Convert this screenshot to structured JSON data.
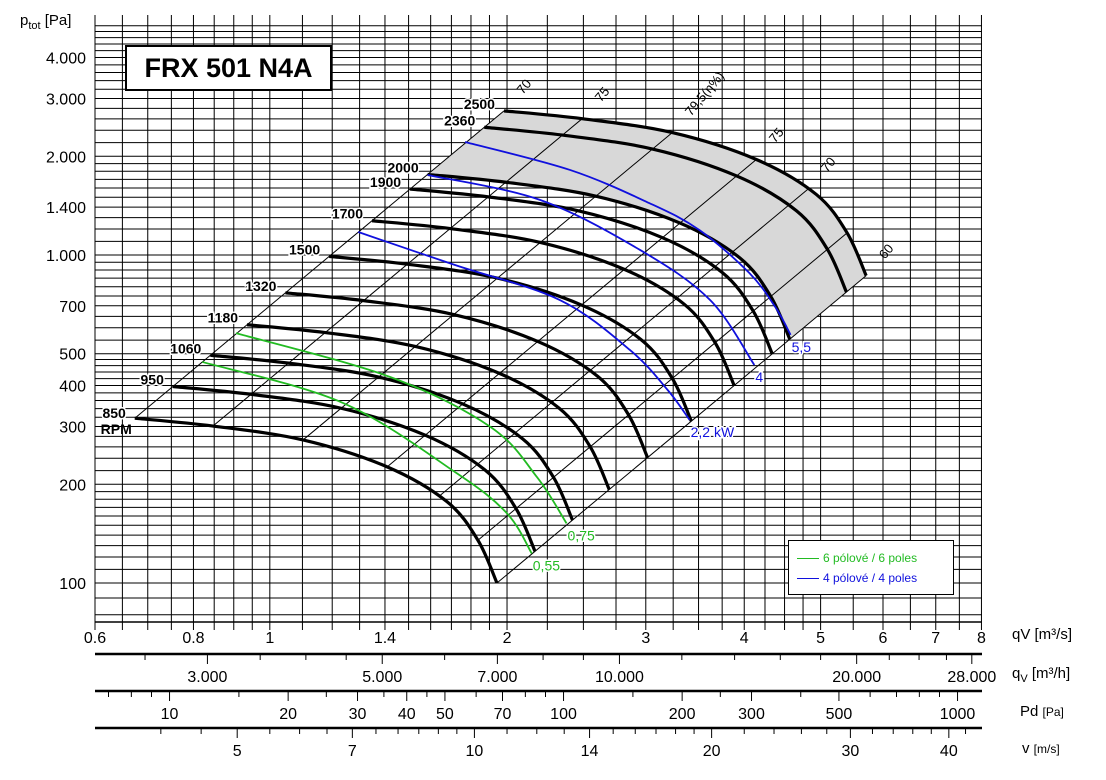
{
  "title": "FRX 501 N4A",
  "y_axis": {
    "symbol": "p",
    "sub": "tot",
    "unit": "[Pa]"
  },
  "units": {
    "qs": {
      "sym": "q",
      "sub": "V",
      "unit": "[m³/s]"
    },
    "qh": {
      "sym": "q",
      "sub": "V",
      "unit": "[m³/h]"
    },
    "pd": {
      "sym": "Pd",
      "unit": "[Pa]"
    },
    "v": {
      "sym": "v",
      "unit": "[m/s]"
    }
  },
  "legend": [
    {
      "label": "6 pólové / 6 poles",
      "color": "#22bb22"
    },
    {
      "label": "4 pólové / 4 poles",
      "color": "#1010dd"
    }
  ],
  "chart_data": {
    "type": "line",
    "title": "FRX 501 N4A",
    "xlabel": "qV [m³/s]",
    "ylabel": "ptot [Pa]",
    "xscale": "log",
    "yscale": "log",
    "xlim": [
      0.6,
      8
    ],
    "ylim": [
      76,
      5200
    ],
    "grid": true,
    "y_ticks": [
      {
        "v": 4000,
        "t": "4.000"
      },
      {
        "v": 3000,
        "t": "3.000"
      },
      {
        "v": 2000,
        "t": "2.000"
      },
      {
        "v": 1400,
        "t": "1.400"
      },
      {
        "v": 1000,
        "t": "1.000"
      },
      {
        "v": 700,
        "t": "700"
      },
      {
        "v": 500,
        "t": "500"
      },
      {
        "v": 400,
        "t": "400"
      },
      {
        "v": 300,
        "t": "300"
      },
      {
        "v": 200,
        "t": "200"
      },
      {
        "v": 100,
        "t": "100"
      }
    ],
    "x_ticks": [
      {
        "v": 0.6,
        "t": "0.6"
      },
      {
        "v": 0.8,
        "t": "0.8"
      },
      {
        "v": 1,
        "t": "1"
      },
      {
        "v": 1.4,
        "t": "1.4"
      },
      {
        "v": 2,
        "t": "2"
      },
      {
        "v": 3,
        "t": "3"
      },
      {
        "v": 4,
        "t": "4"
      },
      {
        "v": 5,
        "t": "5"
      },
      {
        "v": 6,
        "t": "6"
      },
      {
        "v": 7,
        "t": "7"
      },
      {
        "v": 8,
        "t": "8"
      }
    ],
    "base_rpm": 850,
    "base_curve": [
      [
        0.674,
        318
      ],
      [
        0.847,
        301
      ],
      [
        1.102,
        273
      ],
      [
        1.409,
        226
      ],
      [
        1.678,
        177
      ],
      [
        1.837,
        135
      ],
      [
        1.942,
        100
      ]
    ],
    "rpm_curves": [
      {
        "rpm": 850,
        "label": "850",
        "sub": "RPM"
      },
      {
        "rpm": 950,
        "label": "950"
      },
      {
        "rpm": 1060,
        "label": "1060"
      },
      {
        "rpm": 1180,
        "label": "1180"
      },
      {
        "rpm": 1320,
        "label": "1320"
      },
      {
        "rpm": 1500,
        "label": "1500"
      },
      {
        "rpm": 1700,
        "label": "1700"
      },
      {
        "rpm": 1900,
        "label": "1900"
      },
      {
        "rpm": 2000,
        "label": "2000"
      },
      {
        "rpm": 2360,
        "label": "2360"
      },
      {
        "rpm": 2500,
        "label": "2500"
      }
    ],
    "efficiency_lines": [
      {
        "q850": 0.674,
        "label": "70"
      },
      {
        "q850": 0.847,
        "label": "75"
      },
      {
        "q850": 1.102,
        "label": "79,5(η%)"
      },
      {
        "q850": 1.409,
        "label": "75"
      },
      {
        "q850": 1.64,
        "label": "70"
      },
      {
        "q850": 1.837,
        "label": ""
      },
      {
        "q850": 1.942,
        "label": "60"
      }
    ],
    "optimal_zone_rpm": [
      2000,
      2500
    ],
    "motor_curves": [
      {
        "label": "0,55",
        "poles": 6,
        "color": "#22bb22",
        "points": [
          [
            0.821,
            472
          ],
          [
            1.238,
            354
          ],
          [
            1.727,
            216
          ],
          [
            2.0,
            163
          ],
          [
            2.15,
            123
          ]
        ]
      },
      {
        "label": "0,75",
        "poles": 6,
        "color": "#22bb22",
        "points": [
          [
            0.906,
            578
          ],
          [
            1.42,
            425
          ],
          [
            1.906,
            299
          ],
          [
            2.184,
            210
          ],
          [
            2.38,
            152
          ]
        ]
      },
      {
        "label": "2,2 kW",
        "poles": 4,
        "color": "#1010dd",
        "points": [
          [
            1.295,
            1175
          ],
          [
            1.718,
            932
          ],
          [
            2.334,
            729
          ],
          [
            2.865,
            513
          ],
          [
            3.2,
            387
          ],
          [
            3.41,
            314
          ]
        ]
      },
      {
        "label": "4",
        "poles": 4,
        "color": "#1010dd",
        "points": [
          [
            1.586,
            1754
          ],
          [
            2.204,
            1471
          ],
          [
            2.95,
            1036
          ],
          [
            3.62,
            729
          ],
          [
            4.12,
            462
          ]
        ]
      },
      {
        "label": "5,5",
        "poles": 4,
        "color": "#1010dd",
        "points": [
          [
            1.769,
            2211
          ],
          [
            2.404,
            1817
          ],
          [
            3.03,
            1440
          ],
          [
            3.51,
            1191
          ],
          [
            4.06,
            881
          ],
          [
            4.38,
            694
          ],
          [
            4.58,
            571
          ]
        ]
      }
    ],
    "axis_m3h": {
      "labels": [
        {
          "v": 3000,
          "t": "3.000"
        },
        {
          "v": 5000,
          "t": "5.000"
        },
        {
          "v": 7000,
          "t": "7.000"
        },
        {
          "v": 10000,
          "t": "10.000"
        },
        {
          "v": 20000,
          "t": "20.000"
        },
        {
          "v": 28000,
          "t": "28.000"
        }
      ],
      "ticks": [
        2500,
        3000,
        3500,
        4000,
        4500,
        5000,
        6000,
        7000,
        8000,
        9000,
        10000,
        12000,
        14000,
        16000,
        18000,
        20000,
        22000,
        24000,
        26000,
        28000
      ]
    },
    "axis_pd": {
      "labels": [
        {
          "v": 10,
          "t": "10"
        },
        {
          "v": 20,
          "t": "20"
        },
        {
          "v": 30,
          "t": "30"
        },
        {
          "v": 40,
          "t": "40"
        },
        {
          "v": 50,
          "t": "50"
        },
        {
          "v": 70,
          "t": "70"
        },
        {
          "v": 100,
          "t": "100"
        },
        {
          "v": 200,
          "t": "200"
        },
        {
          "v": 300,
          "t": "300"
        },
        {
          "v": 500,
          "t": "500"
        },
        {
          "v": 1000,
          "t": "1000"
        }
      ],
      "ticks": [
        7,
        8,
        9,
        10,
        15,
        20,
        25,
        30,
        35,
        40,
        45,
        50,
        60,
        70,
        80,
        90,
        100,
        150,
        200,
        250,
        300,
        400,
        500,
        600,
        700,
        800,
        900,
        1000
      ]
    },
    "axis_v": {
      "labels": [
        {
          "v": 5,
          "t": "5"
        },
        {
          "v": 7,
          "t": "7"
        },
        {
          "v": 10,
          "t": "10"
        },
        {
          "v": 14,
          "t": "14"
        },
        {
          "v": 20,
          "t": "20"
        },
        {
          "v": 30,
          "t": "30"
        },
        {
          "v": 40,
          "t": "40"
        }
      ],
      "ticks": [
        4,
        4.5,
        5,
        5.5,
        6,
        6.5,
        7,
        7.5,
        8,
        8.5,
        9,
        9.5,
        10,
        11,
        12,
        13,
        14,
        15,
        16,
        17,
        18,
        19,
        20,
        22,
        24,
        26,
        28,
        30,
        32,
        34,
        36,
        38,
        40,
        42
      ]
    }
  }
}
